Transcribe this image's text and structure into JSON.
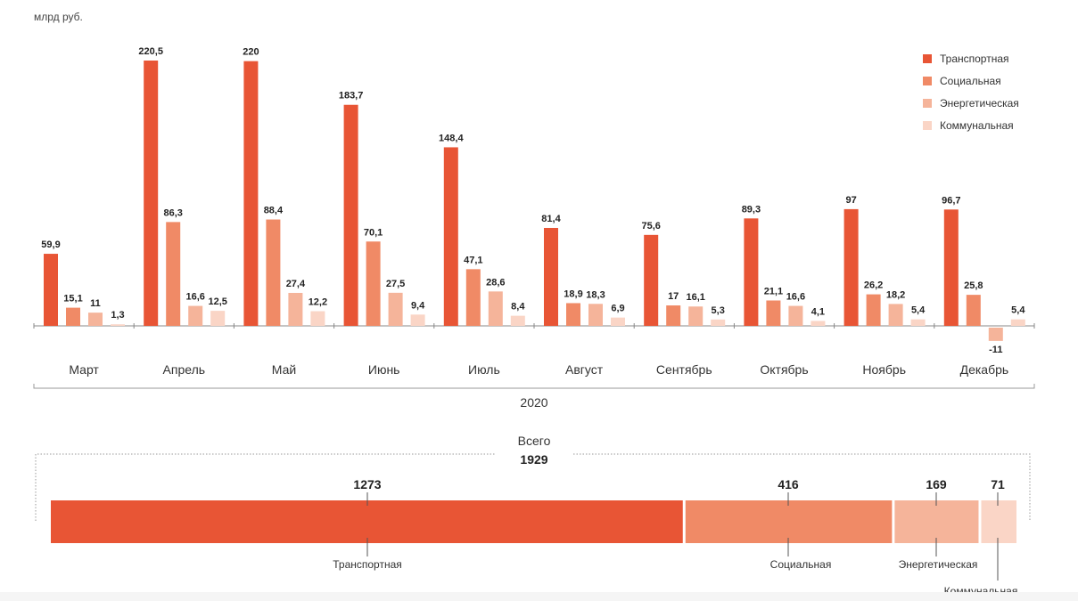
{
  "unit_label": "млрд руб.",
  "year_label": "2020",
  "colors": {
    "transport": "#e85535",
    "social": "#f08a66",
    "energy": "#f5b49a",
    "communal": "#fad5c6",
    "axis": "#888888",
    "bracket": "#999999"
  },
  "legend": [
    {
      "label": "Транспортная",
      "color": "#e85535"
    },
    {
      "label": "Социальная",
      "color": "#f08a66"
    },
    {
      "label": "Энергетическая",
      "color": "#f5b49a"
    },
    {
      "label": "Коммунальная",
      "color": "#fad5c6"
    }
  ],
  "chart_data": [
    {
      "type": "bar",
      "categories": [
        "Март",
        "Апрель",
        "Май",
        "Июнь",
        "Июль",
        "Август",
        "Сентябрь",
        "Октябрь",
        "Ноябрь",
        "Декабрь"
      ],
      "series": [
        {
          "name": "Транспортная",
          "values": [
            59.9,
            220.5,
            220,
            183.7,
            148.4,
            81.4,
            75.6,
            89.3,
            97,
            96.7
          ],
          "labels": [
            "59,9",
            "220,5",
            "220",
            "183,7",
            "148,4",
            "81,4",
            "75,6",
            "89,3",
            "97",
            "96,7"
          ]
        },
        {
          "name": "Социальная",
          "values": [
            15.1,
            86.3,
            88.4,
            70.1,
            47.1,
            18.9,
            17,
            21.1,
            26.2,
            25.8
          ],
          "labels": [
            "15,1",
            "86,3",
            "88,4",
            "70,1",
            "47,1",
            "18,9",
            "17",
            "21,1",
            "26,2",
            "25,8"
          ]
        },
        {
          "name": "Энергетическая",
          "values": [
            11,
            16.6,
            27.4,
            27.5,
            28.6,
            18.3,
            16.1,
            16.6,
            18.2,
            -11
          ],
          "labels": [
            "11",
            "16,6",
            "27,4",
            "27,5",
            "28,6",
            "18,3",
            "16,1",
            "16,6",
            "18,2",
            "-11"
          ]
        },
        {
          "name": "Коммунальная",
          "values": [
            1.3,
            12.5,
            12.2,
            9.4,
            8.4,
            6.9,
            5.3,
            4.1,
            5.4,
            5.4
          ],
          "labels": [
            "1,3",
            "12,5",
            "12,2",
            "9,4",
            "8,4",
            "6,9",
            "5,3",
            "4,1",
            "5,4",
            "5,4"
          ]
        }
      ],
      "xlabel": "2020",
      "ylabel": "млрд руб.",
      "ylim": [
        -11,
        220.5
      ],
      "grid": false,
      "legend_position": "top-right"
    },
    {
      "type": "bar",
      "orientation": "horizontal-stacked",
      "total_label": "Всего",
      "total_value": 1929,
      "categories": [
        "Транспортная",
        "Социальная",
        "Энергетическая",
        "Коммунальная"
      ],
      "values": [
        1273,
        416,
        169,
        71
      ]
    }
  ]
}
